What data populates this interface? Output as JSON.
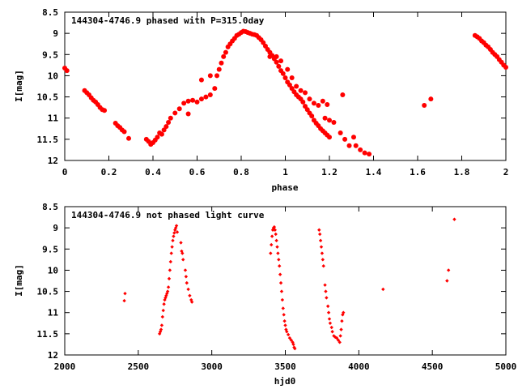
{
  "colors": {
    "points": "#ff0000",
    "frame": "#000000",
    "background": "#ffffff"
  },
  "chart_data": [
    {
      "type": "scatter",
      "title": "144304-4746.9 phased with P=315.0day",
      "xlabel": "phase",
      "ylabel": "I[mag]",
      "xlim": [
        0,
        2
      ],
      "ylim": [
        8.5,
        12
      ],
      "y_inverted": true,
      "grid": false,
      "legend": "none",
      "xticks": [
        "0",
        "0.2",
        "0.4",
        "0.6",
        "0.8",
        "1",
        "1.2",
        "1.4",
        "1.6",
        "1.8",
        "2"
      ],
      "yticks": [
        "8.5",
        "9",
        "9.5",
        "10",
        "10.5",
        "11",
        "11.5",
        "12"
      ],
      "series": [
        {
          "marker": "filled-circle",
          "points": [
            [
              0.0,
              9.82
            ],
            [
              0.01,
              9.88
            ],
            [
              0.09,
              10.35
            ],
            [
              0.1,
              10.4
            ],
            [
              0.11,
              10.45
            ],
            [
              0.12,
              10.52
            ],
            [
              0.13,
              10.58
            ],
            [
              0.14,
              10.62
            ],
            [
              0.15,
              10.68
            ],
            [
              0.16,
              10.75
            ],
            [
              0.17,
              10.8
            ],
            [
              0.18,
              10.82
            ],
            [
              0.23,
              11.12
            ],
            [
              0.24,
              11.18
            ],
            [
              0.25,
              11.22
            ],
            [
              0.26,
              11.28
            ],
            [
              0.27,
              11.32
            ],
            [
              0.29,
              11.48
            ],
            [
              0.37,
              11.5
            ],
            [
              0.38,
              11.55
            ],
            [
              0.39,
              11.62
            ],
            [
              0.4,
              11.58
            ],
            [
              0.41,
              11.52
            ],
            [
              0.42,
              11.45
            ],
            [
              0.43,
              11.35
            ],
            [
              0.44,
              11.38
            ],
            [
              0.45,
              11.28
            ],
            [
              0.46,
              11.2
            ],
            [
              0.47,
              11.1
            ],
            [
              0.48,
              11.0
            ],
            [
              0.5,
              10.88
            ],
            [
              0.52,
              10.78
            ],
            [
              0.54,
              10.65
            ],
            [
              0.56,
              10.6
            ],
            [
              0.58,
              10.58
            ],
            [
              0.6,
              10.62
            ],
            [
              0.62,
              10.55
            ],
            [
              0.64,
              10.5
            ],
            [
              0.66,
              10.45
            ],
            [
              0.68,
              10.3
            ],
            [
              0.62,
              10.1
            ],
            [
              0.66,
              10.0
            ],
            [
              0.56,
              10.9
            ],
            [
              0.69,
              10.0
            ],
            [
              0.7,
              9.85
            ],
            [
              0.71,
              9.7
            ],
            [
              0.72,
              9.55
            ],
            [
              0.73,
              9.45
            ],
            [
              0.74,
              9.32
            ],
            [
              0.75,
              9.25
            ],
            [
              0.76,
              9.18
            ],
            [
              0.77,
              9.12
            ],
            [
              0.78,
              9.05
            ],
            [
              0.79,
              9.02
            ],
            [
              0.8,
              8.98
            ],
            [
              0.81,
              8.95
            ],
            [
              0.82,
              8.96
            ],
            [
              0.83,
              8.98
            ],
            [
              0.84,
              9.0
            ],
            [
              0.85,
              9.02
            ],
            [
              0.86,
              9.03
            ],
            [
              0.87,
              9.05
            ],
            [
              0.88,
              9.1
            ],
            [
              0.89,
              9.15
            ],
            [
              0.9,
              9.22
            ],
            [
              0.91,
              9.3
            ],
            [
              0.92,
              9.38
            ],
            [
              0.93,
              9.45
            ],
            [
              0.94,
              9.52
            ],
            [
              0.95,
              9.6
            ],
            [
              0.96,
              9.68
            ],
            [
              0.97,
              9.78
            ],
            [
              0.98,
              9.88
            ],
            [
              0.99,
              9.95
            ],
            [
              1.0,
              10.05
            ],
            [
              1.01,
              10.15
            ],
            [
              1.02,
              10.22
            ],
            [
              1.03,
              10.3
            ],
            [
              1.04,
              10.38
            ],
            [
              1.05,
              10.45
            ],
            [
              1.06,
              10.5
            ],
            [
              1.07,
              10.55
            ],
            [
              1.08,
              10.62
            ],
            [
              1.09,
              10.72
            ],
            [
              1.1,
              10.8
            ],
            [
              1.11,
              10.88
            ],
            [
              1.12,
              10.95
            ],
            [
              1.13,
              11.05
            ],
            [
              1.14,
              11.12
            ],
            [
              1.15,
              11.18
            ],
            [
              1.16,
              11.25
            ],
            [
              1.17,
              11.3
            ],
            [
              1.18,
              11.35
            ],
            [
              1.19,
              11.4
            ],
            [
              1.2,
              11.45
            ],
            [
              0.93,
              9.55
            ],
            [
              0.96,
              9.55
            ],
            [
              0.98,
              9.65
            ],
            [
              1.01,
              9.85
            ],
            [
              1.03,
              10.05
            ],
            [
              1.05,
              10.25
            ],
            [
              1.07,
              10.35
            ],
            [
              1.09,
              10.4
            ],
            [
              1.11,
              10.55
            ],
            [
              1.13,
              10.65
            ],
            [
              1.15,
              10.7
            ],
            [
              1.17,
              10.6
            ],
            [
              1.19,
              10.68
            ],
            [
              1.18,
              11.0
            ],
            [
              1.2,
              11.05
            ],
            [
              1.22,
              11.1
            ],
            [
              1.25,
              11.35
            ],
            [
              1.27,
              11.5
            ],
            [
              1.29,
              11.65
            ],
            [
              1.32,
              11.65
            ],
            [
              1.34,
              11.75
            ],
            [
              1.36,
              11.82
            ],
            [
              1.38,
              11.85
            ],
            [
              1.31,
              11.45
            ],
            [
              1.26,
              10.45
            ],
            [
              1.63,
              10.7
            ],
            [
              1.66,
              10.55
            ],
            [
              1.86,
              9.05
            ],
            [
              1.87,
              9.08
            ],
            [
              1.88,
              9.12
            ],
            [
              1.89,
              9.18
            ],
            [
              1.9,
              9.22
            ],
            [
              1.91,
              9.28
            ],
            [
              1.92,
              9.32
            ],
            [
              1.93,
              9.38
            ],
            [
              1.94,
              9.45
            ],
            [
              1.95,
              9.5
            ],
            [
              1.96,
              9.55
            ],
            [
              1.97,
              9.62
            ],
            [
              1.98,
              9.68
            ],
            [
              1.99,
              9.75
            ],
            [
              2.0,
              9.8
            ]
          ]
        }
      ]
    },
    {
      "type": "scatter",
      "title": "144304-4746.9 not phased light curve",
      "xlabel": "hjd0",
      "ylabel": "I[mag]",
      "xlim": [
        2000,
        5000
      ],
      "ylim": [
        8.5,
        12
      ],
      "y_inverted": true,
      "grid": false,
      "legend": "none",
      "xticks": [
        "2000",
        "2500",
        "3000",
        "3500",
        "4000",
        "4500",
        "5000"
      ],
      "yticks": [
        "8.5",
        "9",
        "9.5",
        "10",
        "10.5",
        "11",
        "11.5",
        "12"
      ],
      "series": [
        {
          "marker": "filled-diamond",
          "points": [
            [
              2405,
              10.72
            ],
            [
              2410,
              10.55
            ],
            [
              2645,
              11.5
            ],
            [
              2650,
              11.45
            ],
            [
              2655,
              11.4
            ],
            [
              2660,
              11.3
            ],
            [
              2665,
              11.1
            ],
            [
              2670,
              10.95
            ],
            [
              2675,
              10.8
            ],
            [
              2680,
              10.7
            ],
            [
              2685,
              10.65
            ],
            [
              2690,
              10.6
            ],
            [
              2695,
              10.55
            ],
            [
              2700,
              10.5
            ],
            [
              2705,
              10.4
            ],
            [
              2710,
              10.2
            ],
            [
              2715,
              10.0
            ],
            [
              2720,
              9.8
            ],
            [
              2725,
              9.6
            ],
            [
              2730,
              9.45
            ],
            [
              2735,
              9.3
            ],
            [
              2740,
              9.2
            ],
            [
              2745,
              9.12
            ],
            [
              2750,
              9.05
            ],
            [
              2755,
              9.0
            ],
            [
              2760,
              8.95
            ],
            [
              2765,
              9.1
            ],
            [
              2790,
              9.35
            ],
            [
              2795,
              9.55
            ],
            [
              2800,
              9.6
            ],
            [
              2805,
              9.75
            ],
            [
              2820,
              10.0
            ],
            [
              2825,
              10.15
            ],
            [
              2830,
              10.3
            ],
            [
              2840,
              10.45
            ],
            [
              2850,
              10.6
            ],
            [
              2860,
              10.7
            ],
            [
              2865,
              10.75
            ],
            [
              3400,
              9.6
            ],
            [
              3405,
              9.4
            ],
            [
              3410,
              9.2
            ],
            [
              3415,
              9.05
            ],
            [
              3420,
              9.0
            ],
            [
              3425,
              8.98
            ],
            [
              3430,
              9.05
            ],
            [
              3435,
              9.15
            ],
            [
              3440,
              9.3
            ],
            [
              3445,
              9.45
            ],
            [
              3450,
              9.6
            ],
            [
              3455,
              9.75
            ],
            [
              3460,
              9.9
            ],
            [
              3465,
              10.1
            ],
            [
              3470,
              10.3
            ],
            [
              3475,
              10.5
            ],
            [
              3480,
              10.7
            ],
            [
              3485,
              10.9
            ],
            [
              3490,
              11.05
            ],
            [
              3495,
              11.2
            ],
            [
              3500,
              11.3
            ],
            [
              3505,
              11.4
            ],
            [
              3510,
              11.45
            ],
            [
              3520,
              11.52
            ],
            [
              3530,
              11.6
            ],
            [
              3540,
              11.65
            ],
            [
              3550,
              11.7
            ],
            [
              3555,
              11.75
            ],
            [
              3560,
              11.82
            ],
            [
              3565,
              11.85
            ],
            [
              3730,
              9.05
            ],
            [
              3735,
              9.15
            ],
            [
              3740,
              9.3
            ],
            [
              3745,
              9.45
            ],
            [
              3750,
              9.6
            ],
            [
              3755,
              9.75
            ],
            [
              3760,
              9.9
            ],
            [
              3770,
              10.35
            ],
            [
              3775,
              10.5
            ],
            [
              3780,
              10.65
            ],
            [
              3790,
              10.85
            ],
            [
              3795,
              11.0
            ],
            [
              3800,
              11.15
            ],
            [
              3805,
              11.25
            ],
            [
              3815,
              11.35
            ],
            [
              3820,
              11.45
            ],
            [
              3830,
              11.55
            ],
            [
              3840,
              11.58
            ],
            [
              3850,
              11.6
            ],
            [
              3860,
              11.65
            ],
            [
              3870,
              11.7
            ],
            [
              3875,
              11.55
            ],
            [
              3880,
              11.4
            ],
            [
              3885,
              11.2
            ],
            [
              3890,
              11.05
            ],
            [
              3895,
              11.0
            ],
            [
              4165,
              10.45
            ],
            [
              4600,
              10.25
            ],
            [
              4610,
              10.0
            ],
            [
              4650,
              8.8
            ]
          ]
        }
      ]
    }
  ]
}
